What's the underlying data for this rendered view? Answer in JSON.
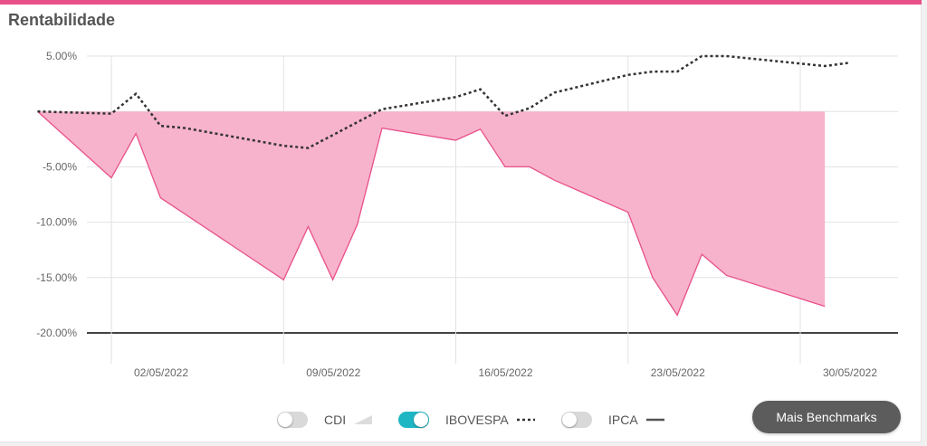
{
  "title": "Rentabilidade",
  "chart_data": {
    "type": "area",
    "ylim": [
      -20,
      5
    ],
    "y_ticks": [
      5,
      0,
      -5,
      -10,
      -15,
      -20
    ],
    "y_tick_labels": [
      "5.00%",
      "",
      "-5.00%",
      "-10.00%",
      "-15.00%",
      "-20.00%"
    ],
    "x_ticks": [
      "02/05/2022",
      "09/05/2022",
      "16/05/2022",
      "23/05/2022",
      "30/05/2022"
    ],
    "x_tick_dates": [
      "2022-05-02",
      "2022-05-09",
      "2022-05-16",
      "2022-05-23",
      "2022-05-30"
    ],
    "grid": true,
    "legend_position": "bottom-center",
    "series": [
      {
        "name": "CDI",
        "style": "area",
        "visible": true,
        "color": "#f7b3cb",
        "stroke": "#e8508a",
        "points": [
          [
            "2022-04-29",
            0.0
          ],
          [
            "2022-05-02",
            -6.0
          ],
          [
            "2022-05-03",
            -2.0
          ],
          [
            "2022-05-04",
            -7.8
          ],
          [
            "2022-05-09",
            -15.2
          ],
          [
            "2022-05-10",
            -10.4
          ],
          [
            "2022-05-11",
            -15.2
          ],
          [
            "2022-05-12",
            -10.2
          ],
          [
            "2022-05-13",
            -1.5
          ],
          [
            "2022-05-16",
            -2.6
          ],
          [
            "2022-05-17",
            -1.6
          ],
          [
            "2022-05-18",
            -5.0
          ],
          [
            "2022-05-19",
            -5.0
          ],
          [
            "2022-05-20",
            -6.2
          ],
          [
            "2022-05-23",
            -9.1
          ],
          [
            "2022-05-24",
            -15.0
          ],
          [
            "2022-05-25",
            -18.4
          ],
          [
            "2022-05-26",
            -12.9
          ],
          [
            "2022-05-27",
            -14.8
          ],
          [
            "2022-05-31",
            -17.6
          ]
        ]
      },
      {
        "name": "IBOVESPA",
        "style": "dotted",
        "visible": true,
        "color": "#333333",
        "points": [
          [
            "2022-04-29",
            0.0
          ],
          [
            "2022-05-02",
            -0.2
          ],
          [
            "2022-05-03",
            1.6
          ],
          [
            "2022-05-04",
            -1.3
          ],
          [
            "2022-05-05",
            -1.5
          ],
          [
            "2022-05-09",
            -3.1
          ],
          [
            "2022-05-10",
            -3.3
          ],
          [
            "2022-05-13",
            0.2
          ],
          [
            "2022-05-16",
            1.3
          ],
          [
            "2022-05-17",
            2.0
          ],
          [
            "2022-05-18",
            -0.4
          ],
          [
            "2022-05-19",
            0.3
          ],
          [
            "2022-05-20",
            1.7
          ],
          [
            "2022-05-23",
            3.3
          ],
          [
            "2022-05-24",
            3.6
          ],
          [
            "2022-05-25",
            3.6
          ],
          [
            "2022-05-26",
            5.0
          ],
          [
            "2022-05-27",
            5.0
          ],
          [
            "2022-05-31",
            4.1
          ],
          [
            "2022-06-01",
            4.4
          ]
        ]
      },
      {
        "name": "IPCA",
        "style": "solid",
        "visible": false,
        "color": "#555555"
      }
    ]
  },
  "legend": [
    {
      "label": "CDI",
      "toggle_on": false,
      "symbol": "area"
    },
    {
      "label": "IBOVESPA",
      "toggle_on": true,
      "symbol": "dotted"
    },
    {
      "label": "IPCA",
      "toggle_on": false,
      "symbol": "solid"
    }
  ],
  "button": {
    "label": "Mais Benchmarks"
  },
  "colors": {
    "accent": "#e8508a",
    "area_fill": "#f7b3cb",
    "toggle_on": "#1fb6c4",
    "toggle_off": "#d9d9d9",
    "button_bg": "#5c5c5c"
  }
}
